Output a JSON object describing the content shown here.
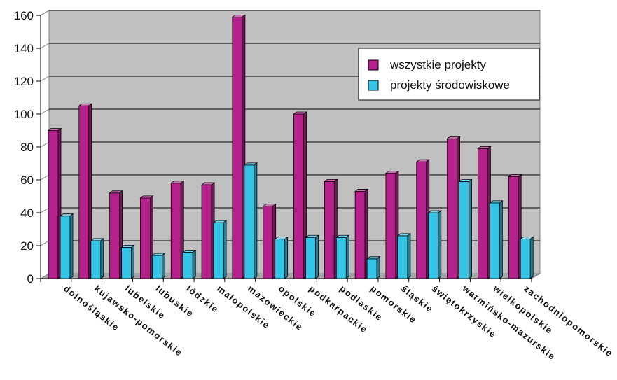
{
  "chart_data": {
    "type": "bar",
    "title": "",
    "xlabel": "",
    "ylabel": "",
    "ylim": [
      0,
      160
    ],
    "yticks": [
      0,
      20,
      40,
      60,
      80,
      100,
      120,
      140,
      160
    ],
    "grid": true,
    "legend_position": "top-right",
    "categories": [
      "dolnośląskie",
      "kujawsko-pomorskie",
      "lubelskie",
      "lubuskie",
      "łódzkie",
      "małopolskie",
      "mazowieckie",
      "opolskie",
      "podkarpackie",
      "podlaskie",
      "pomorskie",
      "śląskie",
      "świętokrzyskie",
      "warmińsko-mazurskie",
      "wielkopolskie",
      "zachodniopomorskie"
    ],
    "series": [
      {
        "name": "wszystkie projekty",
        "color": "#b5218a",
        "values": [
          90,
          105,
          52,
          49,
          58,
          57,
          159,
          44,
          100,
          59,
          53,
          64,
          71,
          85,
          79,
          62
        ]
      },
      {
        "name": "projekty środowiskowe",
        "color": "#33c4e6",
        "values": [
          38,
          23,
          19,
          14,
          16,
          34,
          69,
          24,
          25,
          25,
          12,
          26,
          40,
          59,
          46,
          24
        ]
      }
    ]
  }
}
